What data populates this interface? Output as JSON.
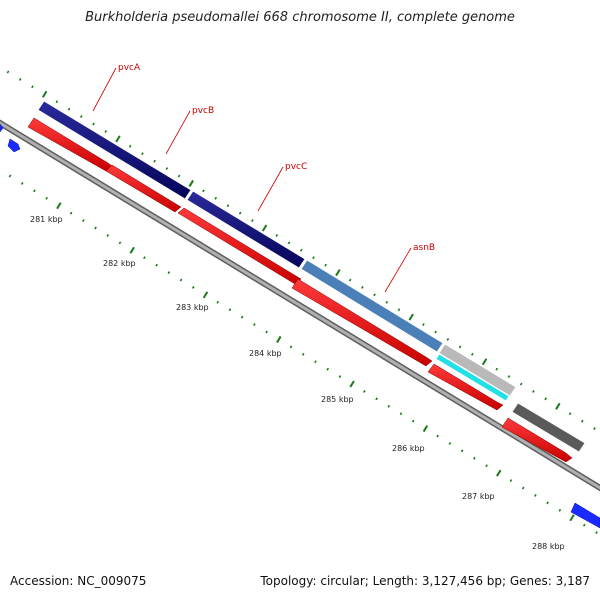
{
  "title": "Burkholderia pseudomallei 668 chromosome II, complete genome",
  "accession_text": "Accession: NC_009075",
  "stats_text": "Topology: circular; Length: 3,127,456 bp; Genes: 3,187",
  "gene_labels": [
    {
      "id": "pvcA",
      "text": "pvcA"
    },
    {
      "id": "pvcB",
      "text": "pvcB"
    },
    {
      "id": "pvcC",
      "text": "pvcC"
    },
    {
      "id": "asnB",
      "text": "asnB"
    }
  ],
  "tick_labels": [
    "281 kbp",
    "282 kbp",
    "283 kbp",
    "284 kbp",
    "285 kbp",
    "286 kbp",
    "287 kbp",
    "288 kbp"
  ],
  "colors": {
    "outer_band": "#0a0a7a",
    "asnB_band": "#4a7fb8",
    "cyan_band": "#22e0e8",
    "light_band": "#b9b9b9",
    "dark_band": "#5a5a5a",
    "cds": "#ee0000",
    "backbone": "#8a8a8a",
    "blue_feature": "#1b2bff",
    "ticks": "#1a7a1a",
    "leader": "#cc0000"
  }
}
